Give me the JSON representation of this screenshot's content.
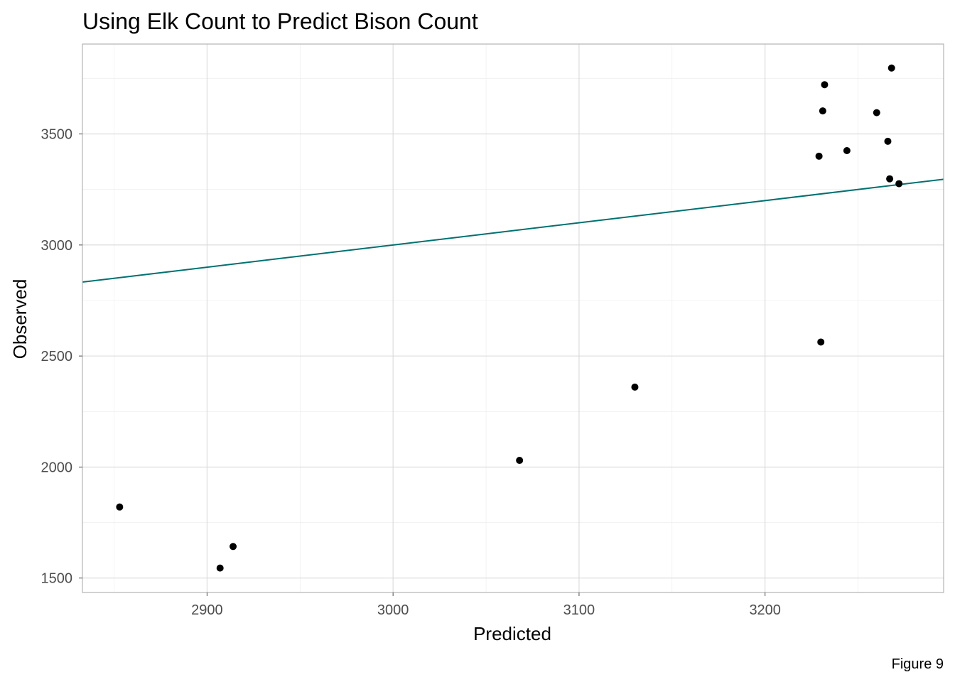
{
  "chart_data": {
    "type": "scatter",
    "title": "Using Elk Count to Predict Bison Count",
    "xlabel": "Predicted",
    "ylabel": "Observed",
    "caption": "Figure 9",
    "xlim": [
      2833,
      3296
    ],
    "ylim": [
      1435,
      3905
    ],
    "x_ticks": [
      2900,
      3000,
      3100,
      3200
    ],
    "y_ticks": [
      1500,
      2000,
      2500,
      3000,
      3500
    ],
    "grid": true,
    "reference_line": {
      "slope": 1,
      "intercept": 0,
      "color": "#007070"
    },
    "points": [
      {
        "x": 2853,
        "y": 1820
      },
      {
        "x": 2907,
        "y": 1545
      },
      {
        "x": 2914,
        "y": 1642
      },
      {
        "x": 3068,
        "y": 2030
      },
      {
        "x": 3130,
        "y": 2360
      },
      {
        "x": 3229,
        "y": 3400
      },
      {
        "x": 3230,
        "y": 2563
      },
      {
        "x": 3231,
        "y": 3604
      },
      {
        "x": 3232,
        "y": 3722
      },
      {
        "x": 3244,
        "y": 3425
      },
      {
        "x": 3260,
        "y": 3596
      },
      {
        "x": 3266,
        "y": 3467
      },
      {
        "x": 3267,
        "y": 3298
      },
      {
        "x": 3268,
        "y": 3797
      },
      {
        "x": 3272,
        "y": 3276
      }
    ]
  }
}
